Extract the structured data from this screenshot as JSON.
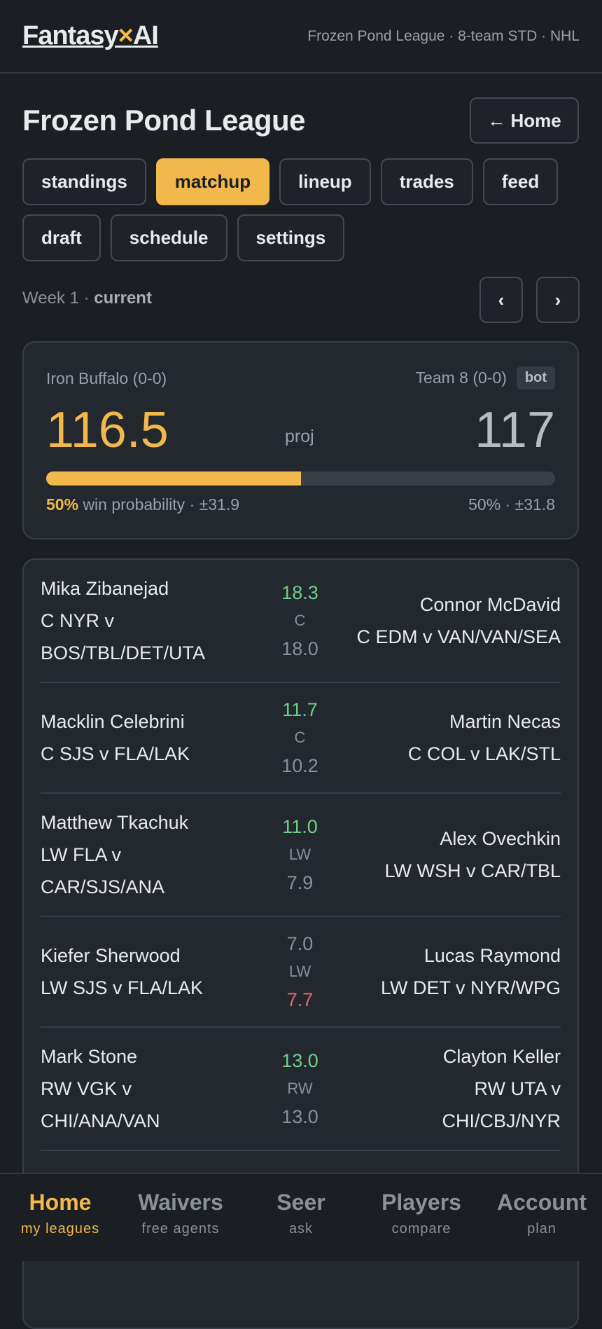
{
  "header": {
    "brand": {
      "name": "Fantasy",
      "mark": "×",
      "suffix": "AI"
    },
    "subtitle": "Frozen Pond League · 8-team STD · NHL"
  },
  "page": {
    "title": "Frozen Pond League",
    "home_button": "← Home"
  },
  "tabs": {
    "items": [
      "standings",
      "matchup",
      "lineup",
      "trades",
      "feed",
      "draft",
      "schedule",
      "settings"
    ],
    "active": 1
  },
  "week": {
    "label": "Week 1 ·",
    "state": "current",
    "prev": "‹",
    "next": "›"
  },
  "scoreboard": {
    "left_team": "Iron Buffalo (0-0)",
    "right_team": "Team 8 (0-0)",
    "right_badge": "bot",
    "left_score": "116.5",
    "right_score": "117",
    "proj": "proj",
    "win_probability": {
      "value": 50,
      "label": "50%"
    },
    "left_note": "win probability · ±31.9",
    "right_note": "50% · ±31.8"
  },
  "matchups": [
    {
      "left_name": "Mika Zibanejad",
      "left_detail": [
        "C NYR v",
        "BOS/TBL/DET/UTA"
      ],
      "left_proj": "18.3",
      "left_color": "#6fd08c",
      "pos": "C",
      "right_proj": "18.0",
      "right_color": "#8b9098",
      "right_name": "Connor McDavid",
      "right_detail": [
        "C EDM v VAN/VAN/SEA"
      ]
    },
    {
      "left_name": "Macklin Celebrini",
      "left_detail": [
        "C SJS v FLA/LAK"
      ],
      "left_proj": "11.7",
      "left_color": "#6fd08c",
      "pos": "C",
      "right_proj": "10.2",
      "right_color": "#8b9098",
      "right_name": "Martin Necas",
      "right_detail": [
        "C COL v LAK/STL"
      ]
    },
    {
      "left_name": "Matthew Tkachuk",
      "left_detail": [
        "LW FLA v",
        "CAR/SJS/ANA"
      ],
      "left_proj": "11.0",
      "left_color": "#6fd08c",
      "pos": "LW",
      "right_proj": "7.9",
      "right_color": "#8b9098",
      "right_name": "Alex Ovechkin",
      "right_detail": [
        "LW WSH v CAR/TBL"
      ]
    },
    {
      "left_name": "Kiefer Sherwood",
      "left_detail": [
        "LW SJS v FLA/LAK"
      ],
      "left_proj": "7.0",
      "left_color": "#8b9098",
      "pos": "LW",
      "right_proj": "7.7",
      "right_color": "#e26d6d",
      "right_name": "Lucas Raymond",
      "right_detail": [
        "LW DET v NYR/WPG"
      ]
    },
    {
      "left_name": "Mark Stone",
      "left_detail": [
        "RW VGK v",
        "CHI/ANA/VAN"
      ],
      "left_proj": "13.0",
      "left_color": "#6fd08c",
      "pos": "RW",
      "right_proj": "13.0",
      "right_color": "#8b9098",
      "right_name": "Clayton Keller",
      "right_detail": [
        "RW UTA v",
        "CHI/CBJ/NYR"
      ]
    }
  ],
  "nav": {
    "items": [
      {
        "label": "Home",
        "sub": "my leagues"
      },
      {
        "label": "Waivers",
        "sub": "free agents"
      },
      {
        "label": "Seer",
        "sub": "ask"
      },
      {
        "label": "Players",
        "sub": "compare"
      },
      {
        "label": "Account",
        "sub": "plan"
      }
    ],
    "active": 0
  }
}
